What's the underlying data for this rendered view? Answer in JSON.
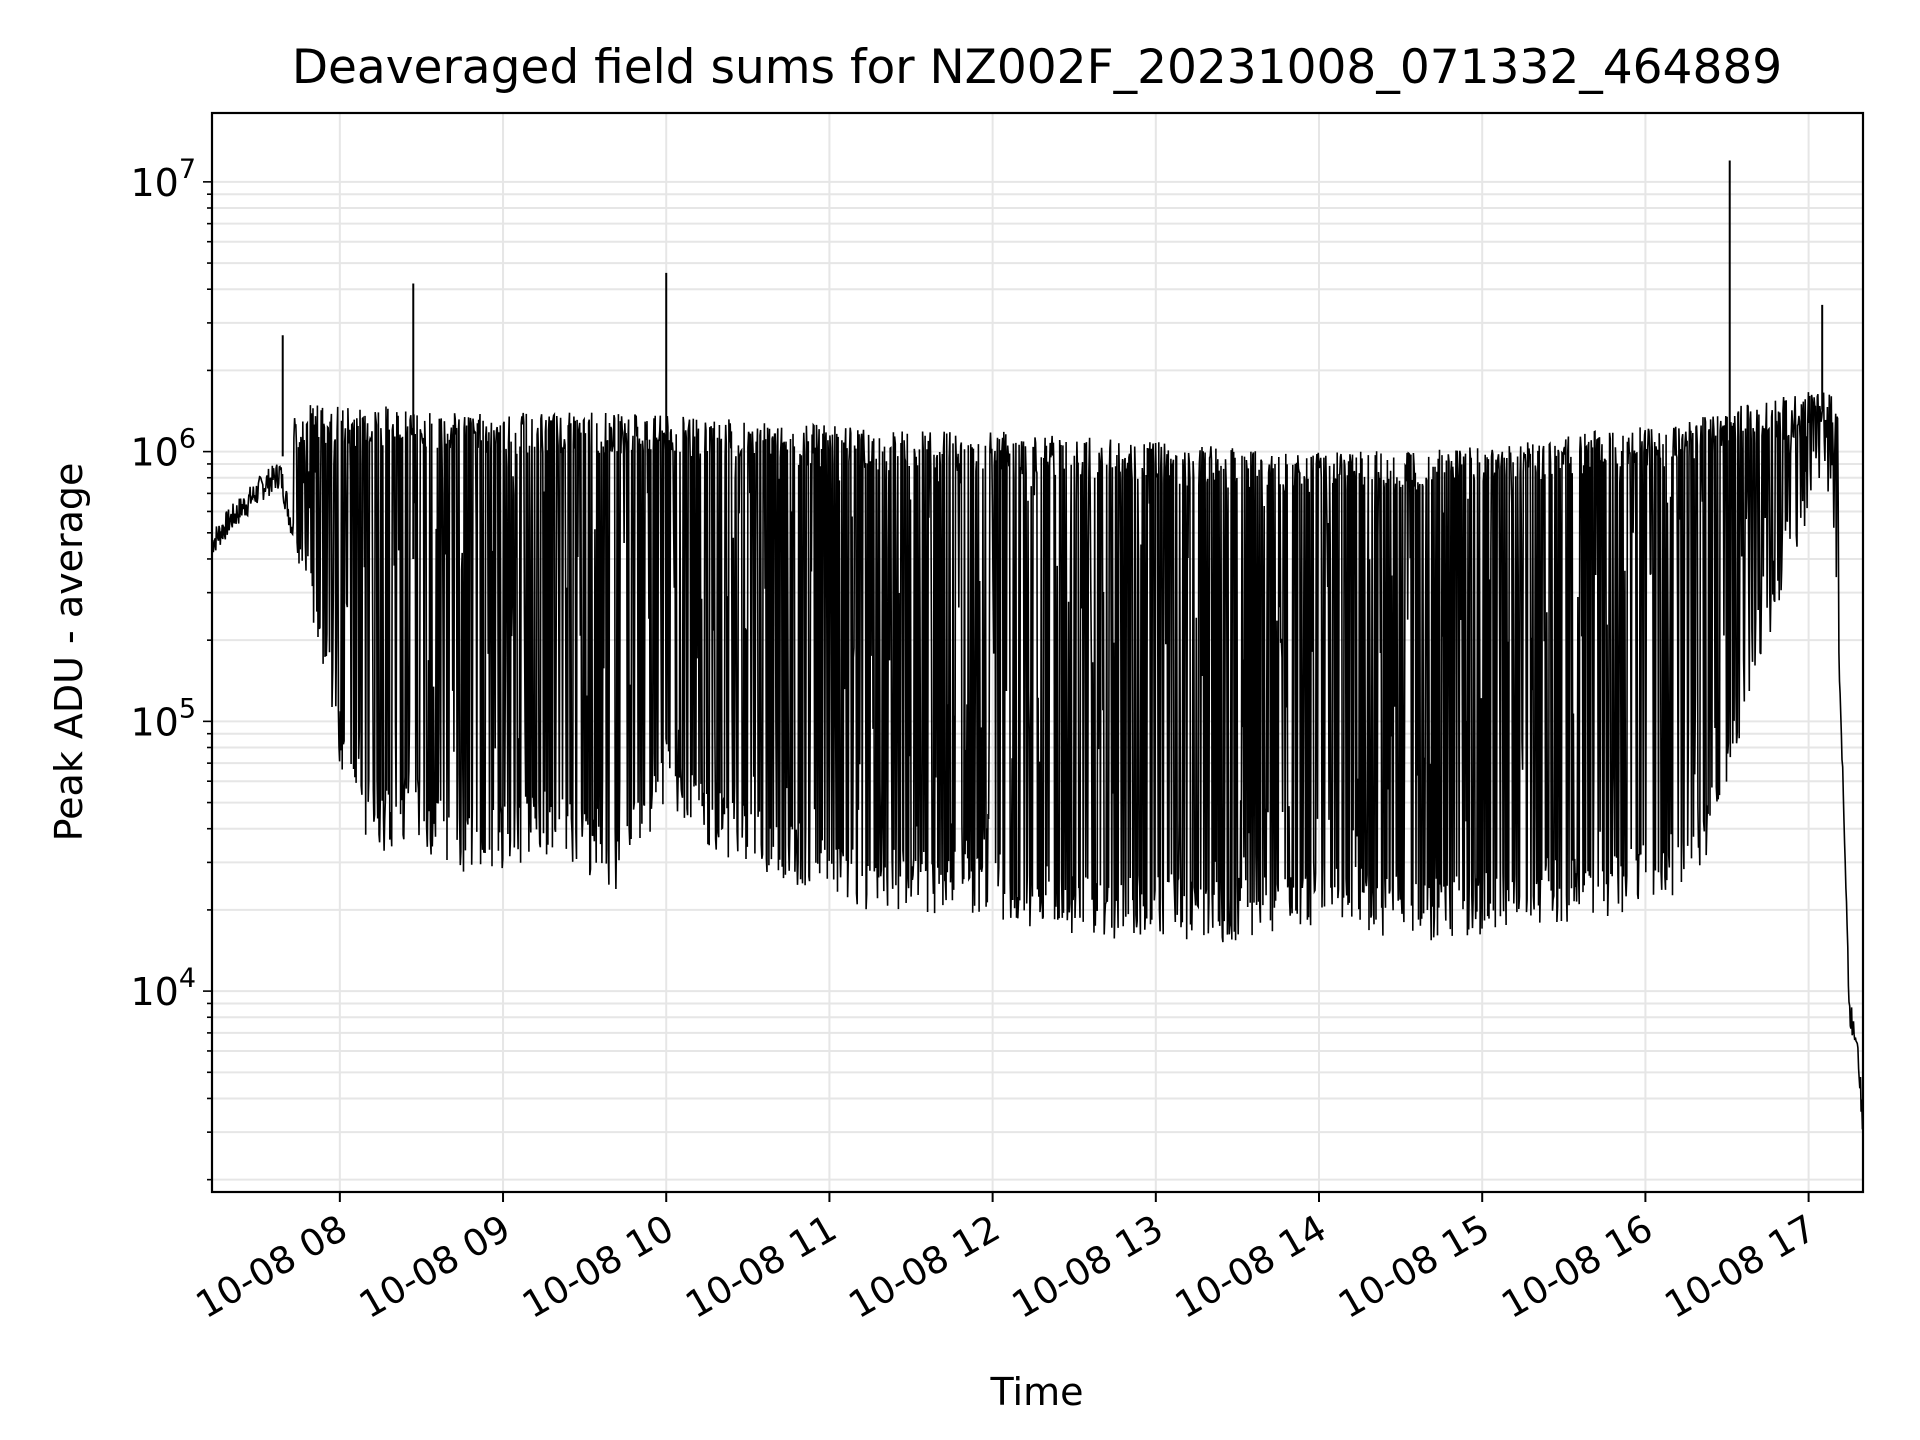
{
  "chart_data": {
    "type": "line",
    "title": "Deaveraged field sums for NZ002F_20231008_071332_464889",
    "xlabel": "Time",
    "ylabel": "Peak ADU - average",
    "yscale": "log",
    "ylim": [
      1800,
      18000000
    ],
    "xlim": [
      "10-08 07:13",
      "10-08 17:20"
    ],
    "grid": true,
    "legend": "none",
    "line_color": "#000000",
    "x_ticks": [
      "10-08 08",
      "10-08 09",
      "10-08 10",
      "10-08 11",
      "10-08 12",
      "10-08 13",
      "10-08 14",
      "10-08 15",
      "10-08 16",
      "10-08 17"
    ],
    "y_ticks": [
      {
        "value": 10000,
        "base": "10",
        "exp": "4"
      },
      {
        "value": 100000,
        "base": "10",
        "exp": "5"
      },
      {
        "value": 1000000,
        "base": "10",
        "exp": "6"
      },
      {
        "value": 10000000,
        "base": "10",
        "exp": "7"
      }
    ],
    "series": [
      {
        "x": [
          "10-08 07:13",
          "10-08 07:20",
          "10-08 07:27",
          "10-08 07:33",
          "10-08 07:36",
          "10-08 07:38",
          "10-08 07:41",
          "10-08 07:45",
          "10-08 07:52",
          "10-08 08:00",
          "10-08 08:06",
          "10-08 08:12",
          "10-08 08:20",
          "10-08 08:27",
          "10-08 08:35",
          "10-08 08:45",
          "10-08 09:00",
          "10-08 09:15",
          "10-08 09:30",
          "10-08 09:40",
          "10-08 09:50",
          "10-08 10:00",
          "10-08 10:10",
          "10-08 10:20",
          "10-08 10:30",
          "10-08 10:45",
          "10-08 11:00",
          "10-08 11:20",
          "10-08 11:40",
          "10-08 12:00",
          "10-08 12:20",
          "10-08 12:40",
          "10-08 13:00",
          "10-08 13:20",
          "10-08 13:40",
          "10-08 14:00",
          "10-08 14:20",
          "10-08 14:40",
          "10-08 15:00",
          "10-08 15:20",
          "10-08 15:40",
          "10-08 16:00",
          "10-08 16:20",
          "10-08 16:32",
          "10-08 16:40",
          "10-08 16:50",
          "10-08 17:00",
          "10-08 17:05",
          "10-08 17:09",
          "10-08 17:12",
          "10-08 17:15",
          "10-08 17:18",
          "10-08 17:20"
        ],
        "values": [
          450000,
          550000,
          650000,
          750000,
          780000,
          820000,
          600000,
          400000,
          250000,
          80000,
          55000,
          42000,
          40000,
          50000,
          36000,
          34000,
          35000,
          40000,
          34000,
          28000,
          38000,
          60000,
          45000,
          40000,
          35000,
          32000,
          27000,
          24000,
          24000,
          23000,
          21000,
          19000,
          20000,
          18000,
          20000,
          22000,
          20000,
          19000,
          20000,
          22000,
          23000,
          25000,
          28000,
          80000,
          180000,
          350000,
          700000,
          1100000,
          700000,
          100000,
          8000,
          6500,
          3000
        ],
        "spike_highs": [
          1500000,
          1500000,
          1400000,
          1400000,
          1400000,
          1350000,
          1300000,
          1250000,
          1200000,
          1200000,
          1150000,
          1100000,
          1050000,
          1000000,
          1000000,
          1050000,
          1100000,
          1200000,
          1250000,
          1500000,
          1700000
        ],
        "outlier_peaks": [
          {
            "x": "10-08 07:39",
            "value": 2700000
          },
          {
            "x": "10-08 08:27",
            "value": 4200000
          },
          {
            "x": "10-08 10:00",
            "value": 4600000
          },
          {
            "x": "10-08 16:31",
            "value": 12000000
          },
          {
            "x": "10-08 17:05",
            "value": 3500000
          }
        ]
      }
    ]
  }
}
